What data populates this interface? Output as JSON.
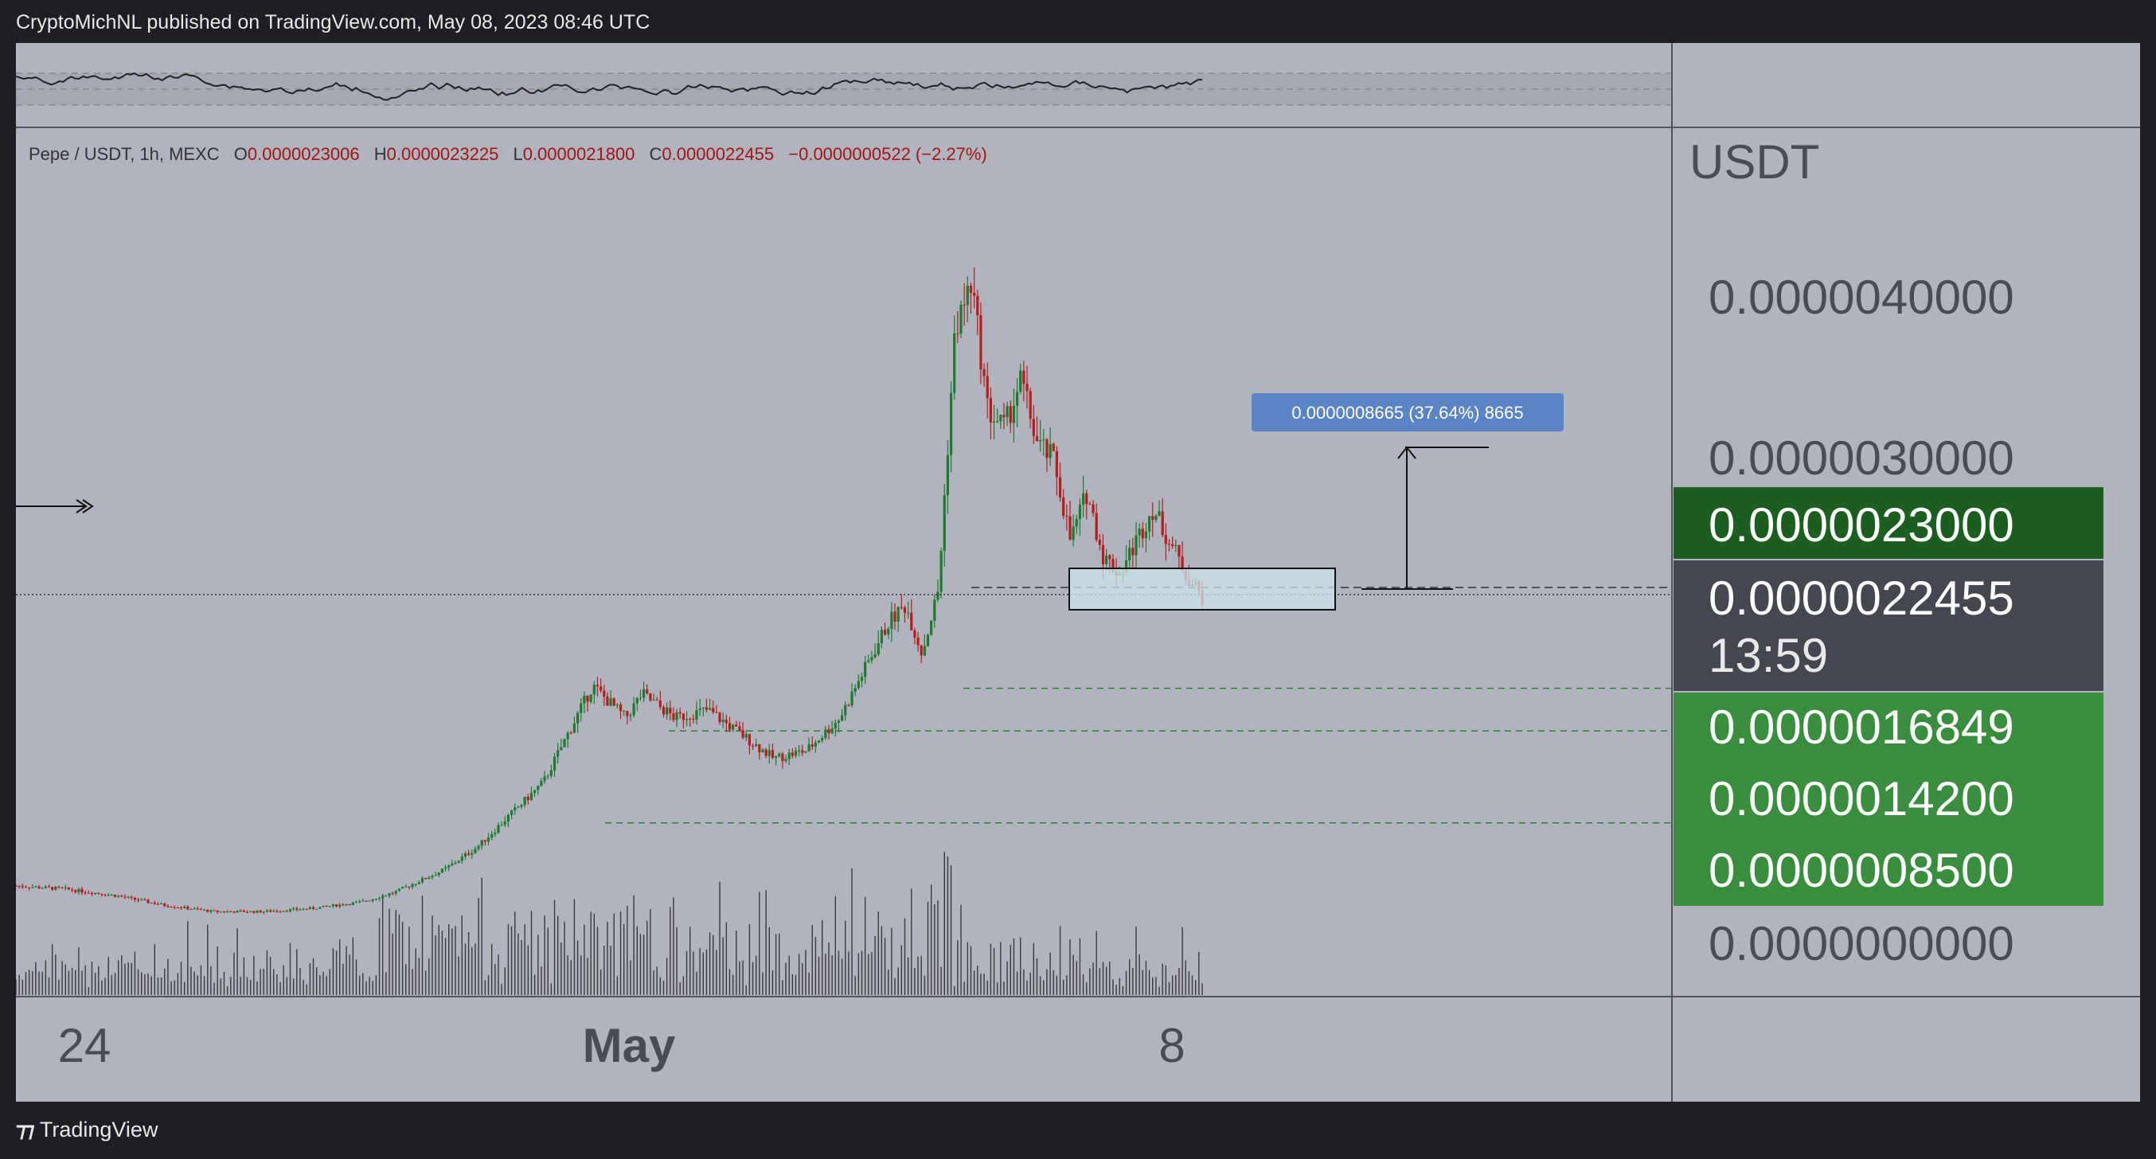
{
  "header": {
    "published_text": "CryptoMichNL published on TradingView.com, May 08, 2023 08:46 UTC"
  },
  "footer": {
    "brand": "TradingView",
    "brand_mark_icon": "tradingview-logo-icon"
  },
  "chart_data": {
    "type": "candlestick",
    "symbol_line": {
      "pair": "Pepe / USDT, 1h, MEXC",
      "open_label": "O",
      "open": "0.0000023006",
      "high_label": "H",
      "high": "0.0000023225",
      "low_label": "L",
      "low": "0.0000021800",
      "close_label": "C",
      "close": "0.0000022455",
      "change": "−0.0000000522 (−2.27%)"
    },
    "currency": "USDT",
    "x_ticks": [
      "24",
      "May",
      "8"
    ],
    "y_ticks": [
      "0.0000040000",
      "0.0000030000",
      "0.0000000000"
    ],
    "ylim": [
      0,
      4.6e-06
    ],
    "price_labels": [
      {
        "value": "0.0000023000",
        "color": "#1b5e20"
      },
      {
        "value": "0.0000022455",
        "sublabel": "13:59",
        "color": "#45474e"
      },
      {
        "value": "0.0000016849",
        "color": "#388e3c"
      },
      {
        "value": "0.0000014200",
        "color": "#388e3c"
      },
      {
        "value": "0.0000008500",
        "color": "#388e3c"
      }
    ],
    "measure_annotation": "0.0000008665 (37.64%) 8665",
    "price_path": [
      [
        0,
        4.6e-07
      ],
      [
        3,
        4.4e-07
      ],
      [
        6,
        4e-07
      ],
      [
        9,
        3.4e-07
      ],
      [
        12,
        3e-07
      ],
      [
        15,
        3e-07
      ],
      [
        18,
        3.2e-07
      ],
      [
        21,
        3.6e-07
      ],
      [
        23,
        4.2e-07
      ],
      [
        26,
        5.6e-07
      ],
      [
        28,
        7e-07
      ],
      [
        30,
        9e-07
      ],
      [
        32,
        1.1e-06
      ],
      [
        34,
        1.5e-06
      ],
      [
        35,
        1.7e-06
      ],
      [
        36,
        1.6e-06
      ],
      [
        37,
        1.5e-06
      ],
      [
        38,
        1.65e-06
      ],
      [
        40,
        1.5e-06
      ],
      [
        42,
        1.55e-06
      ],
      [
        44,
        1.4e-06
      ],
      [
        46,
        1.25e-06
      ],
      [
        48,
        1.3e-06
      ],
      [
        50,
        1.5e-06
      ],
      [
        52,
        1.9e-06
      ],
      [
        53,
        2.1e-06
      ],
      [
        54,
        2.2e-06
      ],
      [
        55,
        1.9e-06
      ],
      [
        56,
        2.3e-06
      ],
      [
        57,
        3.9e-06
      ],
      [
        58,
        4.2e-06
      ],
      [
        59,
        3.4e-06
      ],
      [
        60,
        3.3e-06
      ],
      [
        61,
        3.6e-06
      ],
      [
        62,
        3.2e-06
      ],
      [
        63,
        3.1e-06
      ],
      [
        64,
        2.6e-06
      ],
      [
        65,
        2.9e-06
      ],
      [
        66,
        2.5e-06
      ],
      [
        67,
        2.4e-06
      ],
      [
        68,
        2.6e-06
      ],
      [
        69,
        2.8e-06
      ],
      [
        70,
        2.6e-06
      ],
      [
        71,
        2.4e-06
      ],
      [
        72,
        2.25e-06
      ]
    ],
    "support_levels": [
      "0.0000016849",
      "0.0000014200",
      "0.0000008500"
    ],
    "indicator_panel": {
      "type": "oscillator",
      "shown": true
    }
  }
}
